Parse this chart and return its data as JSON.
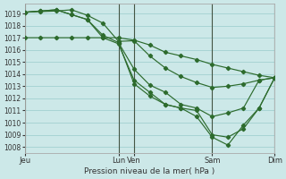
{
  "background_color": "#cce8e8",
  "grid_color": "#99cccc",
  "line_color": "#2d6b2d",
  "xlabel": "Pression niveau de la mer( hPa )",
  "ylim": [
    1007.5,
    1019.8
  ],
  "yticks": [
    1008,
    1009,
    1010,
    1011,
    1012,
    1013,
    1014,
    1015,
    1016,
    1017,
    1018,
    1019
  ],
  "xlim": [
    0,
    96
  ],
  "grid_spacing_x": 6,
  "vline_x": [
    0,
    36,
    42,
    72,
    96
  ],
  "xtick_pos": [
    0,
    36,
    42,
    72,
    96
  ],
  "xtick_labs": [
    "Jeu",
    "Lun",
    "Ven",
    "Sam",
    "Dim"
  ],
  "line1": {
    "x": [
      0,
      6,
      12,
      18,
      24,
      30,
      36,
      42,
      48,
      54,
      60,
      66,
      72,
      78,
      84,
      90,
      96
    ],
    "y": [
      1017.0,
      1017.0,
      1017.0,
      1017.0,
      1017.0,
      1017.0,
      1017.0,
      1016.8,
      1016.4,
      1015.8,
      1015.5,
      1015.2,
      1014.8,
      1014.5,
      1014.2,
      1013.9,
      1013.7
    ]
  },
  "line2": {
    "x": [
      0,
      6,
      12,
      18,
      24,
      30,
      36,
      42,
      48,
      54,
      60,
      66,
      72,
      78,
      84,
      90,
      96
    ],
    "y": [
      1019.1,
      1019.15,
      1019.2,
      1019.3,
      1018.85,
      1018.2,
      1016.7,
      1016.75,
      1015.5,
      1014.5,
      1013.8,
      1013.3,
      1012.9,
      1013.0,
      1013.2,
      1013.5,
      1013.7
    ]
  },
  "line3": {
    "x": [
      0,
      6,
      12,
      18,
      24,
      30,
      36,
      42,
      48,
      54,
      60,
      66,
      72,
      78,
      84,
      90,
      96
    ],
    "y": [
      1019.1,
      1019.2,
      1019.3,
      1018.9,
      1018.5,
      1017.2,
      1016.6,
      1014.4,
      1013.1,
      1012.5,
      1011.5,
      1011.2,
      1010.5,
      1010.8,
      1011.2,
      1013.5,
      1013.7
    ]
  },
  "line4": {
    "x": [
      0,
      6,
      12,
      18,
      24,
      30,
      36,
      42,
      48,
      54,
      60,
      66,
      72,
      78,
      84,
      90,
      96
    ],
    "y": [
      1019.1,
      1019.2,
      1019.3,
      1018.9,
      1018.5,
      1017.0,
      1016.5,
      1013.5,
      1012.5,
      1011.5,
      1011.2,
      1011.0,
      1009.0,
      1008.8,
      1009.5,
      1011.2,
      1013.7
    ]
  },
  "line5": {
    "x": [
      36,
      42,
      48,
      54,
      60,
      66,
      72,
      78,
      84,
      90,
      96
    ],
    "y": [
      1016.6,
      1013.2,
      1012.2,
      1011.5,
      1011.2,
      1010.5,
      1008.8,
      1008.15,
      1009.8,
      1011.2,
      1013.7
    ]
  }
}
